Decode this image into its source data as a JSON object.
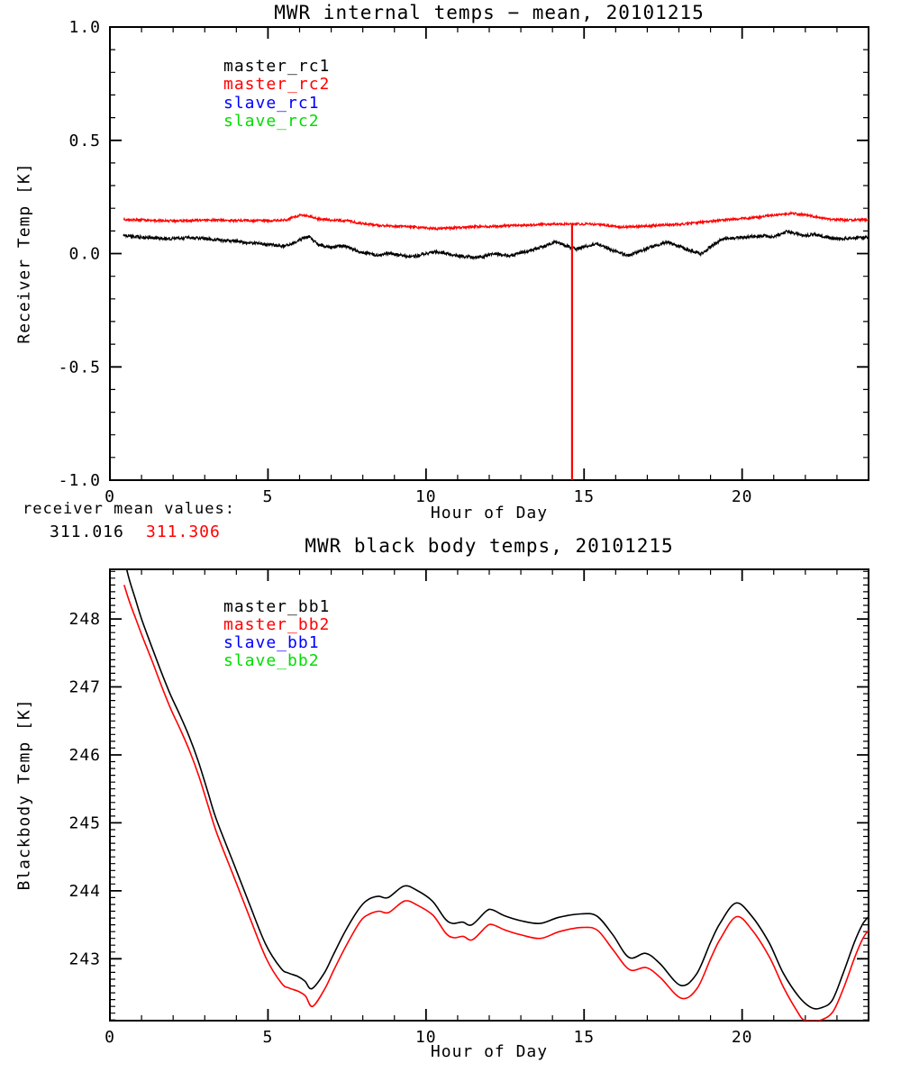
{
  "figure_background": "#ffffff",
  "axis_color": "#000000",
  "chart_data": [
    {
      "type": "line",
      "panel": "top",
      "title": "MWR internal temps − mean, 20101215",
      "xlabel": "Hour of Day",
      "ylabel": "Receiver Temp [K]",
      "xlim": [
        0,
        24
      ],
      "ylim": [
        -1.0,
        1.0
      ],
      "xticks": [
        0,
        5,
        10,
        15,
        20
      ],
      "xtick_labels": [
        "0",
        "5",
        "10",
        "15",
        "20"
      ],
      "yticks": [
        1.0,
        0.5,
        0.0,
        -0.5,
        -1.0
      ],
      "ytick_labels": [
        "1.0",
        "0.5",
        "0.0",
        "-0.5",
        "-1.0"
      ],
      "x_minor_step": 1,
      "y_minor_step": 0.1,
      "grid": false,
      "legend_position": "upper-left-inside",
      "legend": [
        {
          "label": "master_rc1",
          "color": "#000000"
        },
        {
          "label": "master_rc2",
          "color": "#FF0000"
        },
        {
          "label": "slave_rc1",
          "color": "#0000FF"
        },
        {
          "label": "slave_rc2",
          "color": "#00DD00"
        }
      ],
      "noise_seed": 20101215,
      "series": [
        {
          "name": "master_rc1",
          "color": "#000000",
          "noise_amplitude": 0.007,
          "points": [
            [
              0.43,
              0.079
            ],
            [
              1.0,
              0.072
            ],
            [
              1.7,
              0.065
            ],
            [
              2.5,
              0.07
            ],
            [
              3.0,
              0.067
            ],
            [
              3.6,
              0.058
            ],
            [
              4.5,
              0.046
            ],
            [
              5.0,
              0.04
            ],
            [
              5.5,
              0.033
            ],
            [
              5.8,
              0.045
            ],
            [
              6.1,
              0.068
            ],
            [
              6.3,
              0.073
            ],
            [
              6.6,
              0.04
            ],
            [
              7.0,
              0.026
            ],
            [
              7.4,
              0.035
            ],
            [
              7.9,
              0.006
            ],
            [
              8.5,
              -0.008
            ],
            [
              8.8,
              0.001
            ],
            [
              9.5,
              -0.015
            ],
            [
              10.0,
              0.0
            ],
            [
              10.35,
              0.008
            ],
            [
              11.05,
              -0.011
            ],
            [
              11.6,
              -0.019
            ],
            [
              12.2,
              -0.001
            ],
            [
              12.6,
              -0.011
            ],
            [
              13.0,
              0.004
            ],
            [
              13.5,
              0.021
            ],
            [
              14.1,
              0.052
            ],
            [
              14.75,
              0.019
            ],
            [
              15.4,
              0.045
            ],
            [
              15.9,
              0.015
            ],
            [
              16.4,
              -0.008
            ],
            [
              17.05,
              0.025
            ],
            [
              17.65,
              0.052
            ],
            [
              18.2,
              0.02
            ],
            [
              18.7,
              -0.001
            ],
            [
              19.1,
              0.04
            ],
            [
              19.4,
              0.065
            ],
            [
              20.1,
              0.072
            ],
            [
              20.75,
              0.078
            ],
            [
              20.95,
              0.072
            ],
            [
              21.45,
              0.098
            ],
            [
              22.0,
              0.078
            ],
            [
              22.3,
              0.085
            ],
            [
              22.9,
              0.065
            ],
            [
              23.5,
              0.068
            ],
            [
              24.0,
              0.072
            ]
          ]
        },
        {
          "name": "master_rc2",
          "color": "#FF0000",
          "noise_amplitude": 0.005,
          "dropout_spike": {
            "x": 14.62,
            "to_y": -1.0
          },
          "points": [
            [
              0.43,
              0.151
            ],
            [
              1.0,
              0.148
            ],
            [
              2.0,
              0.144
            ],
            [
              3.0,
              0.148
            ],
            [
              4.0,
              0.146
            ],
            [
              5.0,
              0.145
            ],
            [
              5.6,
              0.149
            ],
            [
              6.0,
              0.17
            ],
            [
              6.3,
              0.166
            ],
            [
              6.6,
              0.152
            ],
            [
              7.0,
              0.148
            ],
            [
              7.5,
              0.145
            ],
            [
              8.0,
              0.132
            ],
            [
              8.5,
              0.125
            ],
            [
              9.0,
              0.121
            ],
            [
              9.6,
              0.118
            ],
            [
              10.35,
              0.109
            ],
            [
              11.0,
              0.115
            ],
            [
              11.5,
              0.118
            ],
            [
              12.0,
              0.12
            ],
            [
              12.8,
              0.124
            ],
            [
              13.5,
              0.127
            ],
            [
              14.1,
              0.131
            ],
            [
              14.62,
              0.13
            ],
            [
              15.2,
              0.131
            ],
            [
              15.8,
              0.124
            ],
            [
              16.2,
              0.117
            ],
            [
              16.8,
              0.121
            ],
            [
              17.5,
              0.126
            ],
            [
              18.2,
              0.131
            ],
            [
              19.1,
              0.144
            ],
            [
              19.8,
              0.152
            ],
            [
              20.5,
              0.16
            ],
            [
              21.0,
              0.17
            ],
            [
              21.6,
              0.178
            ],
            [
              22.1,
              0.168
            ],
            [
              22.7,
              0.152
            ],
            [
              23.3,
              0.148
            ],
            [
              24.0,
              0.15
            ]
          ]
        },
        {
          "name": "slave_rc1",
          "color": "#0000FF",
          "points": []
        },
        {
          "name": "slave_rc2",
          "color": "#00DD00",
          "points": []
        }
      ],
      "annotation": {
        "label": "receiver mean values:",
        "values": [
          {
            "text": "311.016",
            "color": "#000000"
          },
          {
            "text": "311.306",
            "color": "#FF0000"
          }
        ]
      }
    },
    {
      "type": "line",
      "panel": "bottom",
      "title": "MWR black body temps, 20101215",
      "xlabel": "Hour of Day",
      "ylabel": "Blackbody Temp [K]",
      "xlim": [
        0,
        24
      ],
      "ylim": [
        242.09,
        248.73
      ],
      "xticks": [
        0,
        5,
        10,
        15,
        20
      ],
      "xtick_labels": [
        "0",
        "5",
        "10",
        "15",
        "20"
      ],
      "yticks": [
        243,
        244,
        245,
        246,
        247,
        248
      ],
      "ytick_labels": [
        "243",
        "244",
        "245",
        "246",
        "247",
        "248"
      ],
      "x_minor_step": 1,
      "y_minor_step": 0.1,
      "grid": false,
      "legend_position": "upper-left-inside",
      "legend": [
        {
          "label": "master_bb1",
          "color": "#000000"
        },
        {
          "label": "master_bb2",
          "color": "#FF0000"
        },
        {
          "label": "slave_bb1",
          "color": "#0000FF"
        },
        {
          "label": "slave_bb2",
          "color": "#00DD00"
        }
      ],
      "series": [
        {
          "name": "master_bb1",
          "color": "#000000",
          "points": [
            [
              0.42,
              248.95
            ],
            [
              0.6,
              248.6
            ],
            [
              0.8,
              248.3
            ],
            [
              1.0,
              248.0
            ],
            [
              1.3,
              247.62
            ],
            [
              1.6,
              247.25
            ],
            [
              1.9,
              246.9
            ],
            [
              2.2,
              246.6
            ],
            [
              2.5,
              246.28
            ],
            [
              2.8,
              245.9
            ],
            [
              3.1,
              245.45
            ],
            [
              3.36,
              245.06
            ],
            [
              3.89,
              244.43
            ],
            [
              4.41,
              243.81
            ],
            [
              4.93,
              243.21
            ],
            [
              5.41,
              242.86
            ],
            [
              5.65,
              242.79
            ],
            [
              5.95,
              242.74
            ],
            [
              6.17,
              242.67
            ],
            [
              6.39,
              242.56
            ],
            [
              6.78,
              242.79
            ],
            [
              7.07,
              243.06
            ],
            [
              7.45,
              243.41
            ],
            [
              7.9,
              243.75
            ],
            [
              8.2,
              243.88
            ],
            [
              8.5,
              243.92
            ],
            [
              8.8,
              243.9
            ],
            [
              9.3,
              244.07
            ],
            [
              9.7,
              244.01
            ],
            [
              10.2,
              243.85
            ],
            [
              10.6,
              243.59
            ],
            [
              10.85,
              243.52
            ],
            [
              11.15,
              243.54
            ],
            [
              11.45,
              243.5
            ],
            [
              11.9,
              243.7
            ],
            [
              12.1,
              243.72
            ],
            [
              12.5,
              243.63
            ],
            [
              13.0,
              243.56
            ],
            [
              13.6,
              243.52
            ],
            [
              14.2,
              243.61
            ],
            [
              14.9,
              243.66
            ],
            [
              15.4,
              243.63
            ],
            [
              15.9,
              243.36
            ],
            [
              16.42,
              243.02
            ],
            [
              16.95,
              243.08
            ],
            [
              17.4,
              242.93
            ],
            [
              18.05,
              242.61
            ],
            [
              18.55,
              242.77
            ],
            [
              19.0,
              243.24
            ],
            [
              19.3,
              243.52
            ],
            [
              19.8,
              243.82
            ],
            [
              20.3,
              243.63
            ],
            [
              20.85,
              243.24
            ],
            [
              21.3,
              242.79
            ],
            [
              21.8,
              242.44
            ],
            [
              22.2,
              242.28
            ],
            [
              22.5,
              242.28
            ],
            [
              22.85,
              242.39
            ],
            [
              23.2,
              242.79
            ],
            [
              23.55,
              243.24
            ],
            [
              23.8,
              243.5
            ],
            [
              24.0,
              243.62
            ]
          ]
        },
        {
          "name": "master_bb2",
          "color": "#FF0000",
          "points": [
            [
              0.45,
              248.5
            ],
            [
              0.62,
              248.25
            ],
            [
              0.82,
              248.0
            ],
            [
              1.02,
              247.75
            ],
            [
              1.32,
              247.4
            ],
            [
              1.62,
              247.03
            ],
            [
              1.92,
              246.68
            ],
            [
              2.22,
              246.38
            ],
            [
              2.52,
              246.06
            ],
            [
              2.82,
              245.68
            ],
            [
              3.12,
              245.23
            ],
            [
              3.38,
              244.85
            ],
            [
              3.91,
              244.22
            ],
            [
              4.43,
              243.6
            ],
            [
              4.95,
              243.0
            ],
            [
              5.43,
              242.64
            ],
            [
              5.67,
              242.57
            ],
            [
              5.97,
              242.52
            ],
            [
              6.19,
              242.45
            ],
            [
              6.41,
              242.3
            ],
            [
              6.8,
              242.56
            ],
            [
              7.09,
              242.84
            ],
            [
              7.47,
              243.19
            ],
            [
              7.92,
              243.55
            ],
            [
              8.22,
              243.66
            ],
            [
              8.52,
              243.7
            ],
            [
              8.82,
              243.68
            ],
            [
              9.32,
              243.85
            ],
            [
              9.72,
              243.79
            ],
            [
              10.22,
              243.64
            ],
            [
              10.62,
              243.38
            ],
            [
              10.87,
              243.31
            ],
            [
              11.17,
              243.33
            ],
            [
              11.47,
              243.28
            ],
            [
              11.92,
              243.48
            ],
            [
              12.12,
              243.5
            ],
            [
              12.52,
              243.42
            ],
            [
              13.02,
              243.35
            ],
            [
              13.62,
              243.3
            ],
            [
              14.22,
              243.4
            ],
            [
              14.92,
              243.46
            ],
            [
              15.42,
              243.42
            ],
            [
              15.92,
              243.13
            ],
            [
              16.44,
              242.84
            ],
            [
              16.97,
              242.87
            ],
            [
              17.42,
              242.72
            ],
            [
              18.07,
              242.42
            ],
            [
              18.57,
              242.56
            ],
            [
              19.02,
              243.02
            ],
            [
              19.32,
              243.3
            ],
            [
              19.82,
              243.62
            ],
            [
              20.32,
              243.42
            ],
            [
              20.87,
              243.02
            ],
            [
              21.32,
              242.57
            ],
            [
              21.75,
              242.22
            ],
            [
              21.95,
              242.1
            ],
            [
              22.2,
              242.09
            ],
            [
              22.5,
              242.1
            ],
            [
              22.87,
              242.22
            ],
            [
              23.22,
              242.58
            ],
            [
              23.57,
              243.03
            ],
            [
              23.82,
              243.3
            ],
            [
              24.0,
              243.42
            ]
          ]
        },
        {
          "name": "slave_bb1",
          "color": "#0000FF",
          "points": []
        },
        {
          "name": "slave_bb2",
          "color": "#00DD00",
          "points": []
        }
      ]
    }
  ]
}
